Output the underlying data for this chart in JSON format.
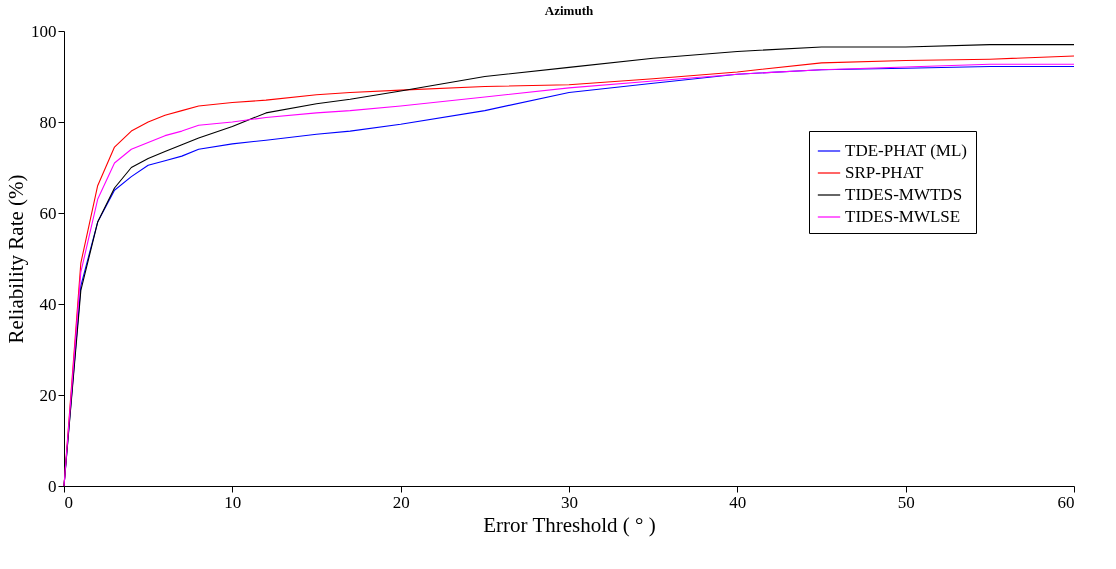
{
  "chart_data": {
    "type": "line",
    "title": "Azimuth",
    "xlabel": "Error Threshold ( ° )",
    "ylabel": "Reliability Rate (%)",
    "x": [
      0,
      1,
      2,
      3,
      4,
      5,
      6,
      7,
      8,
      10,
      12,
      15,
      17,
      20,
      25,
      30,
      35,
      40,
      45,
      50,
      55,
      60
    ],
    "series": [
      {
        "name": "TDE-PHAT (ML)",
        "color": "#0000ff",
        "values": [
          0,
          44,
          58,
          65,
          68,
          70.5,
          71.5,
          72.5,
          74,
          75.2,
          76,
          77.3,
          78,
          79.5,
          82.5,
          86.5,
          88.5,
          90.5,
          91.5,
          91.8,
          92.2,
          92.2
        ]
      },
      {
        "name": "SRP-PHAT",
        "color": "#ff0000",
        "values": [
          0,
          49,
          66,
          74.5,
          78,
          80,
          81.5,
          82.5,
          83.5,
          84.3,
          84.8,
          86,
          86.5,
          87,
          87.8,
          88.2,
          89.5,
          91,
          93,
          93.5,
          93.8,
          94.5
        ]
      },
      {
        "name": "TIDES-MWTDS",
        "color": "#000000",
        "values": [
          0,
          43,
          58,
          65.5,
          70,
          72,
          73.5,
          75,
          76.5,
          79,
          82,
          84,
          85,
          86.8,
          90,
          92,
          94,
          95.5,
          96.5,
          96.5,
          97,
          97
        ]
      },
      {
        "name": "TIDES-MWLSE",
        "color": "#ff00ff",
        "values": [
          0,
          47,
          63,
          71,
          74,
          75.5,
          77,
          78,
          79.3,
          80,
          81,
          82,
          82.5,
          83.5,
          85.5,
          87.5,
          89,
          90.5,
          91.5,
          92.1,
          92.7,
          92.7
        ]
      }
    ],
    "xlim": [
      0,
      60
    ],
    "xticks": [
      0,
      10,
      20,
      30,
      40,
      50,
      60
    ],
    "ylim": [
      0,
      100
    ],
    "yticks": [
      0,
      20,
      40,
      60,
      80,
      100
    ],
    "grid": false,
    "legend": "right",
    "marker": "none",
    "line_style": "solid"
  }
}
